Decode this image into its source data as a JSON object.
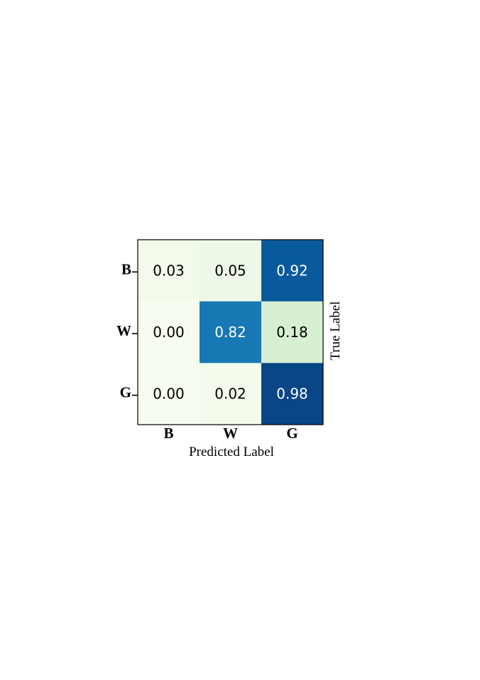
{
  "chart_data": {
    "type": "heatmap",
    "x_categories": [
      "B",
      "W",
      "G"
    ],
    "y_categories": [
      "B",
      "W",
      "G"
    ],
    "values": [
      [
        0.03,
        0.05,
        0.92
      ],
      [
        0.0,
        0.82,
        0.18
      ],
      [
        0.0,
        0.02,
        0.98
      ]
    ],
    "cell_labels": [
      [
        "0.03",
        "0.05",
        "0.92"
      ],
      [
        "0.00",
        "0.82",
        "0.18"
      ],
      [
        "0.00",
        "0.02",
        "0.98"
      ]
    ],
    "xlabel": "Predicted Label",
    "ylabel": "True Label",
    "ylabel_position": "right",
    "colormap": "GnBu",
    "colors": {
      "low": "#f7fcf0",
      "mid_low": "#d5eecf",
      "mid": "#2d8cc0",
      "high": "#08306b",
      "dark_text": "#000000",
      "light_text": "#ffffff"
    }
  }
}
